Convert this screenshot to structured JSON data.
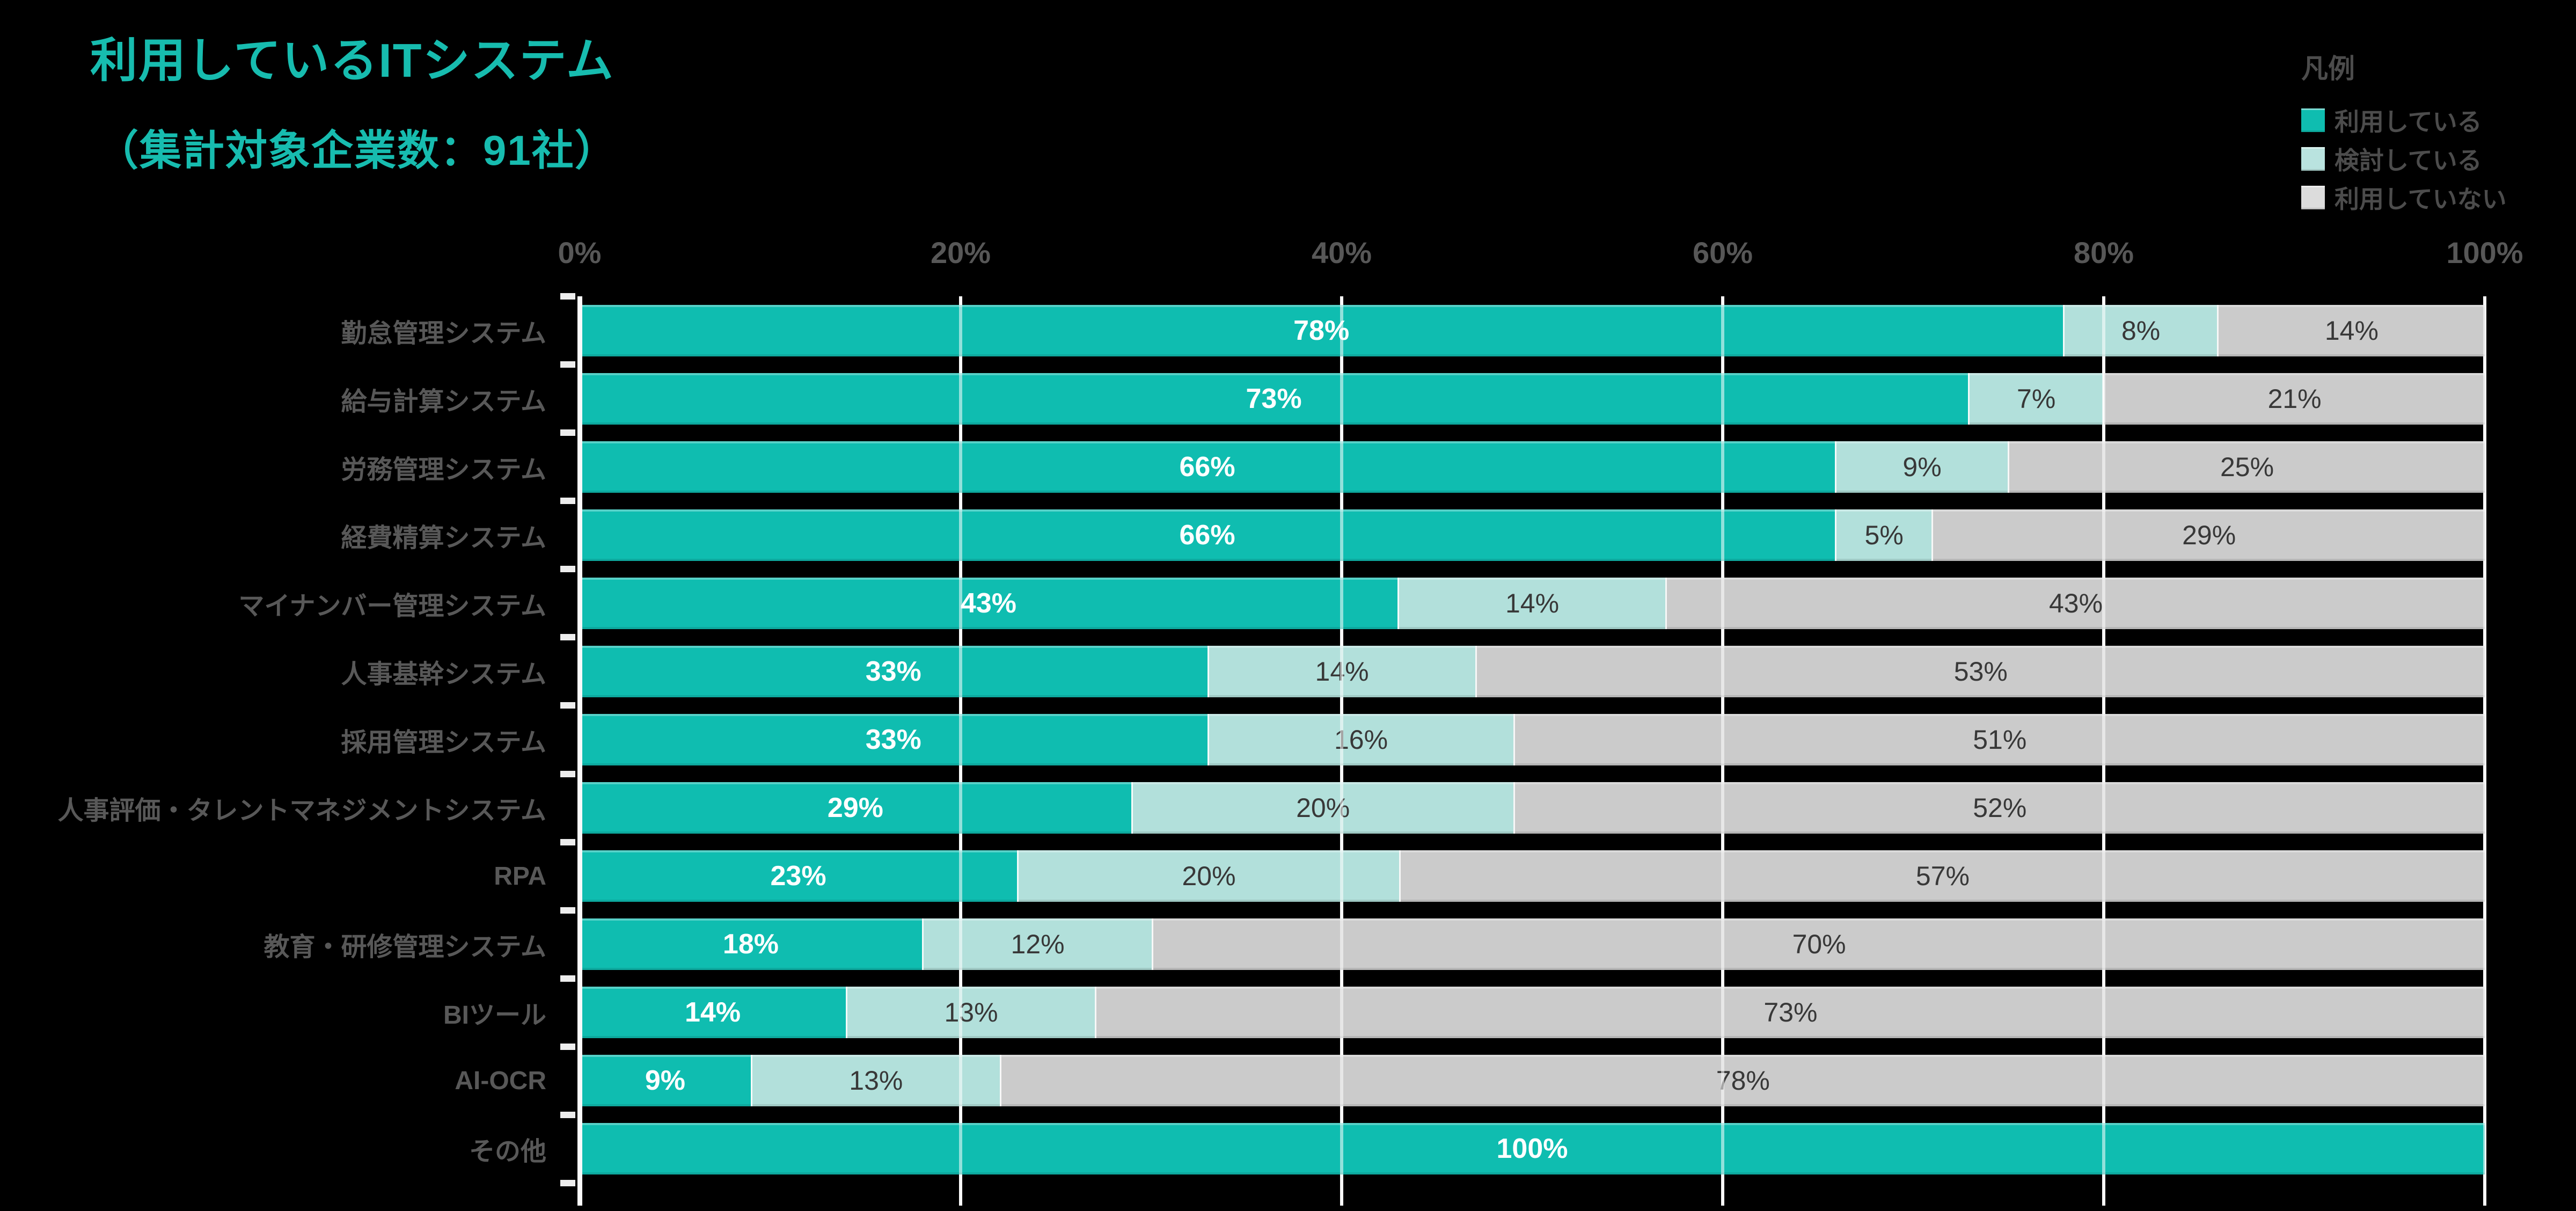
{
  "title": "利用しているITシステム",
  "subtitle": "（集計対象企業数：91社）",
  "legend": {
    "title": "凡例",
    "items": [
      {
        "label": "利用している",
        "color": "#0FBDB0"
      },
      {
        "label": "検討している",
        "color": "#B9E3DF"
      },
      {
        "label": "利用していない",
        "color": "#DCDCDC"
      }
    ]
  },
  "colors": {
    "background": "#000000",
    "title_text": "#17BCAF",
    "bar_using": "#0FBDB0",
    "bar_considering": "#B2E0DB",
    "bar_not_using": "#CBCBCB",
    "axis_text": "#575757",
    "gridline": "#FFFFFF"
  },
  "chart_data": {
    "type": "bar",
    "orientation": "horizontal",
    "stacked": true,
    "title": "利用しているITシステム",
    "subtitle": "（集計対象企業数：91社）",
    "sample_note": "集計対象企業数：91社",
    "xlim": [
      0,
      100
    ],
    "x_tick_labels": [
      "0%",
      "20%",
      "40%",
      "60%",
      "80%",
      "100%"
    ],
    "x_tick_values": [
      0,
      20,
      40,
      60,
      80,
      100
    ],
    "grid": true,
    "legend_position": "top-right",
    "categories": [
      "勤怠管理システム",
      "給与計算システム",
      "労務管理システム",
      "経費精算システム",
      "マイナンバー管理システム",
      "人事基幹システム",
      "採用管理システム",
      "人事評価・タレントマネジメントシステム",
      "RPA",
      "教育・研修管理システム",
      "BIツール",
      "AI-OCR",
      "その他"
    ],
    "series": [
      {
        "name": "利用している",
        "color": "#0FBDB0",
        "values": [
          78,
          73,
          66,
          66,
          43,
          33,
          33,
          29,
          23,
          18,
          14,
          9,
          100
        ]
      },
      {
        "name": "検討している",
        "color": "#B2E0DB",
        "values": [
          8,
          7,
          9,
          5,
          14,
          14,
          16,
          20,
          20,
          12,
          13,
          13,
          0
        ]
      },
      {
        "name": "利用していない",
        "color": "#CBCBCB",
        "values": [
          14,
          21,
          25,
          29,
          43,
          53,
          51,
          52,
          57,
          70,
          73,
          78,
          0
        ]
      }
    ]
  }
}
